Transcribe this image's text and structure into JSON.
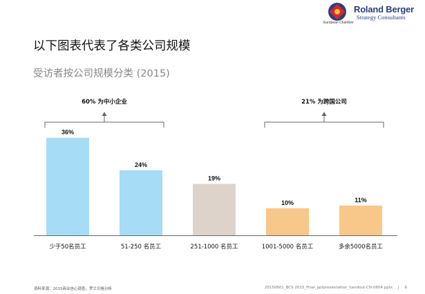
{
  "header": {
    "logo_brand": "Roland Berger",
    "logo_sub": "Strategy Consultants",
    "logo_chamber": "European Chamber"
  },
  "title": "以下图表代表了各类公司规模",
  "subtitle": "受访者按公司规模分类 (2015)",
  "chart_data": {
    "type": "bar",
    "categories": [
      "少于50名员工",
      "51-250 名员工",
      "251-1000 名员工",
      "1001-5000 名员工",
      "多余5000名员工"
    ],
    "values": [
      36,
      24,
      19,
      10,
      11
    ],
    "value_labels": [
      "36%",
      "24%",
      "19%",
      "10%",
      "11%"
    ],
    "ylim": [
      0,
      40
    ],
    "grid": false,
    "colors": [
      "#a6dcf5",
      "#a6dcf5",
      "#ddd3ca",
      "#f8c78a",
      "#f8c78a"
    ],
    "groups": [
      {
        "label": "60% 为中小企业",
        "categories": [
          0,
          1
        ]
      },
      {
        "label": "21% 为跨国公司",
        "categories": [
          3,
          4
        ]
      }
    ]
  },
  "footer": {
    "source": "资料来源：2015商业信心调查，罗兰贝格分析",
    "file": "20150601_BCS 2015_Final_pptpresentation_handout-CN-0604.pptx",
    "page": "6"
  }
}
